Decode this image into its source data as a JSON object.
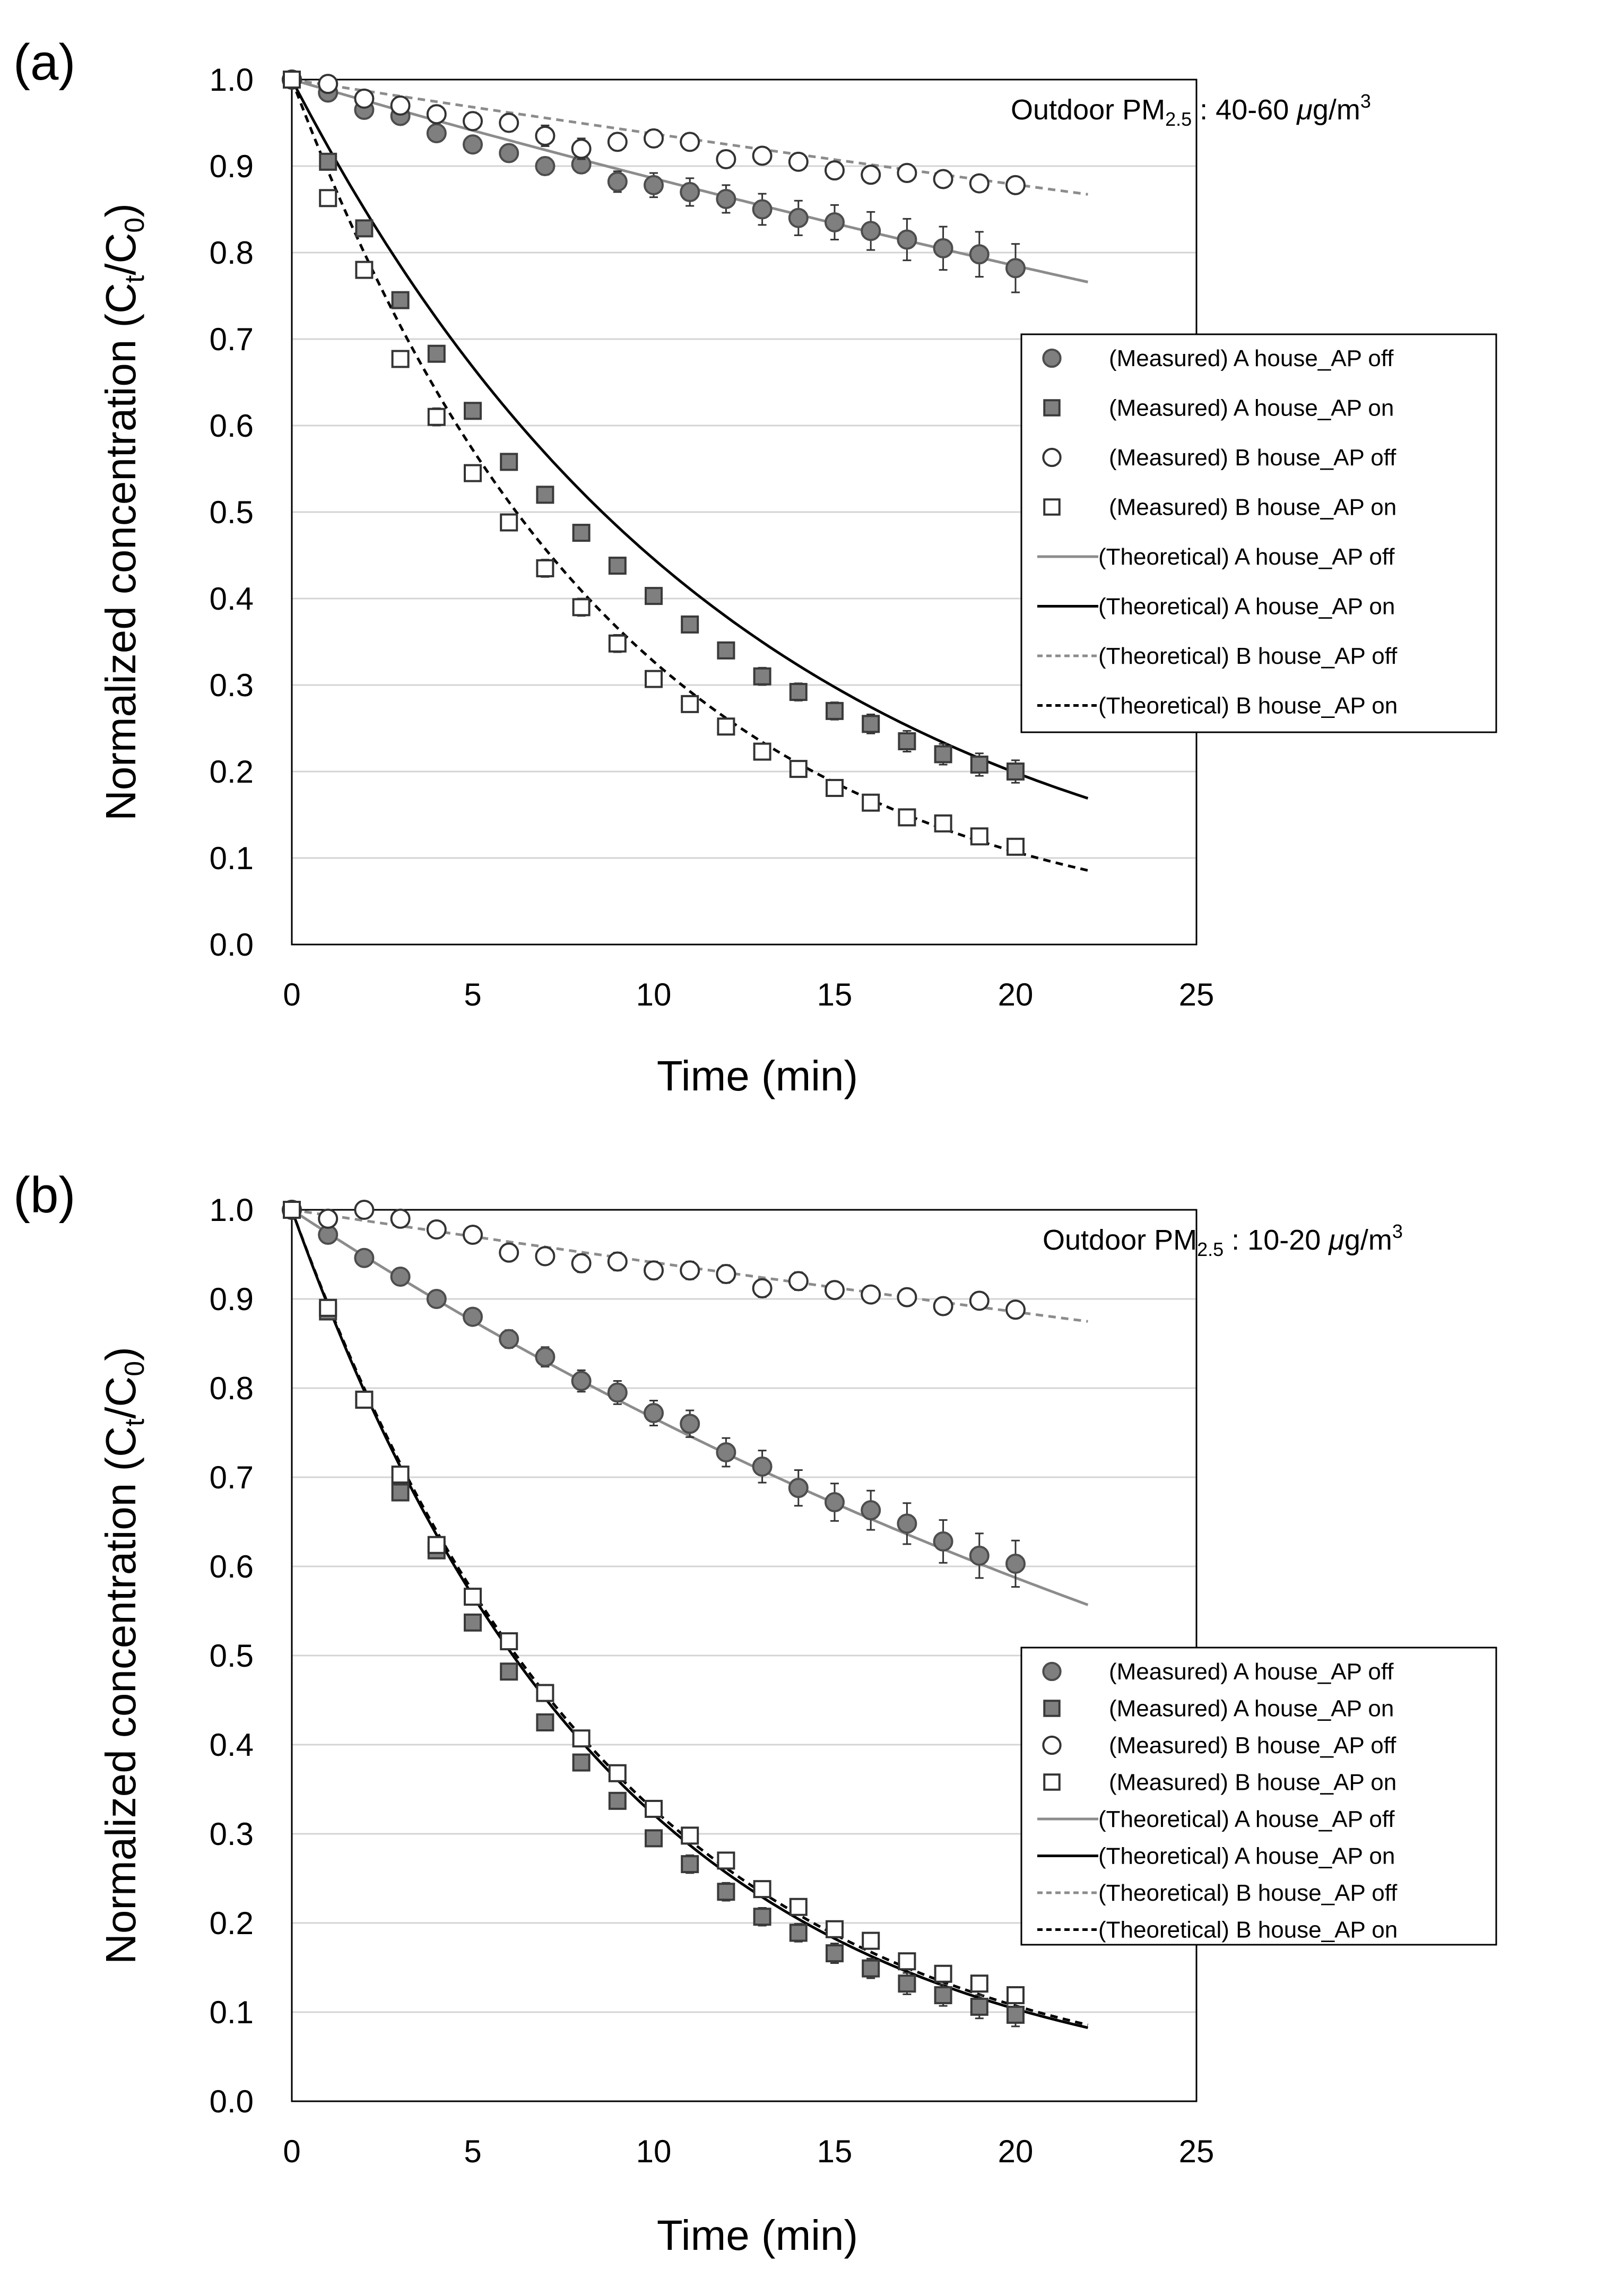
{
  "figure": {
    "panels": [
      "(a)",
      "(b)"
    ]
  },
  "chart_data": [
    {
      "type": "scatter",
      "panel_label": "(a)",
      "annotation": {
        "prefix": "Outdoor PM",
        "sub": "2.5",
        "range": " : 40-60 ",
        "unit_mu": "μ",
        "unit_g": "g/m",
        "unit_sup": "3"
      },
      "xlabel": "Time (min)",
      "ylabel": {
        "main": "Normalized concentration (C",
        "sub1": "t",
        "mid": "/C",
        "sub2": "0",
        "end": ")"
      },
      "xlim": [
        0,
        25
      ],
      "ylim": [
        0,
        1.0
      ],
      "xticks": [
        "0",
        "5",
        "10",
        "15",
        "20",
        "25"
      ],
      "yticks": [
        "0.0",
        "0.1",
        "0.2",
        "0.3",
        "0.4",
        "0.5",
        "0.6",
        "0.7",
        "0.8",
        "0.9",
        "1.0"
      ],
      "grid": "horizontal",
      "legend_position": "right-middle",
      "x": [
        0,
        1,
        2,
        3,
        4,
        5,
        6,
        7,
        8,
        9,
        10,
        11,
        12,
        13,
        14,
        15,
        16,
        17,
        18,
        19,
        20
      ],
      "measured": [
        {
          "name": "(Measured) A house_AP off",
          "marker": "circle-filled",
          "values": [
            1.0,
            0.985,
            0.965,
            0.958,
            0.938,
            0.925,
            0.915,
            0.9,
            0.902,
            0.882,
            0.878,
            0.87,
            0.862,
            0.85,
            0.84,
            0.835,
            0.825,
            0.815,
            0.805,
            0.798,
            0.782
          ],
          "errors": [
            0.003,
            0.005,
            0.006,
            0.006,
            0.007,
            0.008,
            0.008,
            0.01,
            0.01,
            0.012,
            0.014,
            0.016,
            0.016,
            0.018,
            0.02,
            0.02,
            0.022,
            0.024,
            0.025,
            0.026,
            0.028
          ]
        },
        {
          "name": "(Measured) A house_AP on",
          "marker": "square-filled",
          "values": [
            1.0,
            0.905,
            0.828,
            0.745,
            0.683,
            0.617,
            0.558,
            0.52,
            0.476,
            0.438,
            0.403,
            0.37,
            0.34,
            0.31,
            0.292,
            0.27,
            0.255,
            0.235,
            0.22,
            0.208,
            0.2
          ],
          "errors": [
            0.003,
            0.004,
            0.005,
            0.005,
            0.006,
            0.006,
            0.007,
            0.007,
            0.008,
            0.008,
            0.008,
            0.009,
            0.009,
            0.01,
            0.01,
            0.01,
            0.011,
            0.012,
            0.012,
            0.013,
            0.013
          ]
        },
        {
          "name": "(Measured) B house_AP off",
          "marker": "circle-open",
          "values": [
            1.0,
            0.995,
            0.978,
            0.97,
            0.96,
            0.952,
            0.95,
            0.935,
            0.92,
            0.928,
            0.932,
            0.928,
            0.908,
            0.912,
            0.905,
            0.895,
            0.89,
            0.892,
            0.885,
            0.88,
            0.878
          ],
          "errors": [
            0.003,
            0.004,
            0.005,
            0.006,
            0.01,
            0.01,
            0.01,
            0.012,
            0.012,
            0.01,
            0.01,
            0.009,
            0.01,
            0.009,
            0.009,
            0.009,
            0.009,
            0.008,
            0.008,
            0.008,
            0.007
          ]
        },
        {
          "name": "(Measured) B house_AP on",
          "marker": "square-open",
          "values": [
            1.0,
            0.863,
            0.78,
            0.677,
            0.61,
            0.545,
            0.488,
            0.435,
            0.39,
            0.348,
            0.307,
            0.278,
            0.252,
            0.223,
            0.203,
            0.181,
            0.164,
            0.147,
            0.14,
            0.125,
            0.113
          ],
          "errors": [
            0.003,
            0.006,
            0.008,
            0.008,
            0.01,
            0.009,
            0.009,
            0.01,
            0.01,
            0.01,
            0.009,
            0.008,
            0.008,
            0.008,
            0.007,
            0.007,
            0.007,
            0.006,
            0.006,
            0.006,
            0.006
          ]
        }
      ],
      "theoretical": [
        {
          "name": "(Theoretical) A house_AP off",
          "style": "solid-gray",
          "x_range": [
            0,
            22
          ],
          "decay_rate": 0.01212
        },
        {
          "name": "(Theoretical) A house_AP on",
          "style": "solid-black",
          "x_range": [
            0,
            22
          ],
          "decay_rate": 0.0808
        },
        {
          "name": "(Theoretical) B house_AP off",
          "style": "dashed-gray",
          "x_range": [
            0,
            22
          ],
          "decay_rate": 0.00647
        },
        {
          "name": "(Theoretical) B house_AP on",
          "style": "dashed-black",
          "x_range": [
            0,
            22
          ],
          "decay_rate": 0.1117
        }
      ]
    },
    {
      "type": "scatter",
      "panel_label": "(b)",
      "annotation": {
        "prefix": "Outdoor PM",
        "sub": "2.5",
        "range": " : 10-20 ",
        "unit_mu": "μ",
        "unit_g": "g/m",
        "unit_sup": "3"
      },
      "xlabel": "Time (min)",
      "ylabel": {
        "main": "Normalized concentration (C",
        "sub1": "t",
        "mid": "/C",
        "sub2": "0",
        "end": ")"
      },
      "xlim": [
        0,
        25
      ],
      "ylim": [
        0,
        1.0
      ],
      "xticks": [
        "0",
        "5",
        "10",
        "15",
        "20",
        "25"
      ],
      "yticks": [
        "0.0",
        "0.1",
        "0.2",
        "0.3",
        "0.4",
        "0.5",
        "0.6",
        "0.7",
        "0.8",
        "0.9",
        "1.0"
      ],
      "grid": "horizontal",
      "legend_position": "right-middle",
      "x": [
        0,
        1,
        2,
        3,
        4,
        5,
        6,
        7,
        8,
        9,
        10,
        11,
        12,
        13,
        14,
        15,
        16,
        17,
        18,
        19,
        20
      ],
      "measured": [
        {
          "name": "(Measured) A house_AP off",
          "marker": "circle-filled",
          "values": [
            1.0,
            0.972,
            0.946,
            0.925,
            0.9,
            0.88,
            0.855,
            0.835,
            0.808,
            0.795,
            0.772,
            0.76,
            0.728,
            0.712,
            0.688,
            0.672,
            0.663,
            0.648,
            0.628,
            0.612,
            0.603
          ],
          "errors": [
            0.003,
            0.005,
            0.006,
            0.007,
            0.008,
            0.009,
            0.01,
            0.011,
            0.012,
            0.013,
            0.014,
            0.015,
            0.016,
            0.018,
            0.02,
            0.021,
            0.022,
            0.023,
            0.024,
            0.025,
            0.026
          ]
        },
        {
          "name": "(Measured) A house_AP on",
          "marker": "square-filled",
          "values": [
            1.0,
            0.886,
            0.787,
            0.683,
            0.618,
            0.537,
            0.482,
            0.425,
            0.38,
            0.337,
            0.295,
            0.266,
            0.235,
            0.207,
            0.189,
            0.166,
            0.149,
            0.132,
            0.119,
            0.106,
            0.097
          ],
          "errors": [
            0.003,
            0.005,
            0.005,
            0.006,
            0.007,
            0.007,
            0.007,
            0.008,
            0.008,
            0.009,
            0.009,
            0.01,
            0.01,
            0.01,
            0.01,
            0.011,
            0.011,
            0.012,
            0.012,
            0.013,
            0.013
          ]
        },
        {
          "name": "(Measured) B house_AP off",
          "marker": "circle-open",
          "values": [
            1.0,
            0.99,
            1.0,
            0.99,
            0.978,
            0.972,
            0.952,
            0.948,
            0.94,
            0.942,
            0.932,
            0.932,
            0.928,
            0.912,
            0.92,
            0.91,
            0.905,
            0.902,
            0.892,
            0.898,
            0.888
          ],
          "errors": [
            0.003,
            0.004,
            0.004,
            0.005,
            0.006,
            0.007,
            0.008,
            0.009,
            0.01,
            0.01,
            0.01,
            0.01,
            0.01,
            0.01,
            0.01,
            0.009,
            0.009,
            0.009,
            0.009,
            0.009,
            0.009
          ]
        },
        {
          "name": "(Measured) B house_AP on",
          "marker": "square-open",
          "values": [
            1.0,
            0.89,
            0.787,
            0.703,
            0.624,
            0.566,
            0.516,
            0.458,
            0.407,
            0.368,
            0.328,
            0.298,
            0.27,
            0.238,
            0.218,
            0.193,
            0.18,
            0.157,
            0.143,
            0.132,
            0.119
          ],
          "errors": [
            0.003,
            0.005,
            0.005,
            0.006,
            0.006,
            0.006,
            0.006,
            0.007,
            0.007,
            0.007,
            0.007,
            0.007,
            0.007,
            0.006,
            0.006,
            0.006,
            0.006,
            0.006,
            0.006,
            0.006,
            0.006
          ]
        }
      ],
      "theoretical": [
        {
          "name": "(Theoretical) A house_AP off",
          "style": "solid-gray",
          "x_range": [
            0,
            22
          ],
          "decay_rate": 0.02661
        },
        {
          "name": "(Theoretical) A house_AP on",
          "style": "solid-black",
          "x_range": [
            0,
            22
          ],
          "decay_rate": 0.1134
        },
        {
          "name": "(Theoretical) B house_AP off",
          "style": "dashed-gray",
          "x_range": [
            0,
            22
          ],
          "decay_rate": 0.00608
        },
        {
          "name": "(Theoretical) B house_AP on",
          "style": "dashed-black",
          "x_range": [
            0,
            22
          ],
          "decay_rate": 0.1117
        }
      ]
    }
  ]
}
